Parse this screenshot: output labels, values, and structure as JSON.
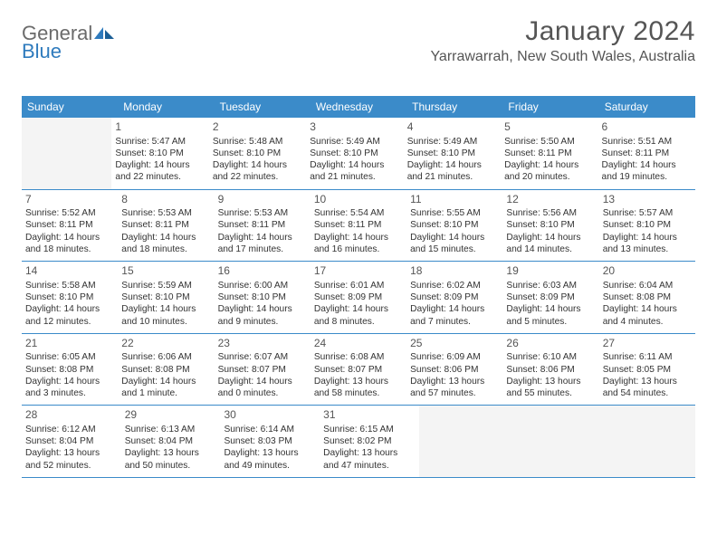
{
  "brand": {
    "part1": "General",
    "part2": "Blue"
  },
  "title": "January 2024",
  "location": "Yarrawarrah, New South Wales, Australia",
  "colors": {
    "header_bg": "#3b8bc9",
    "header_text": "#ffffff",
    "brand_gray": "#6b6b6b",
    "brand_blue": "#2f7bbd",
    "text": "#333333",
    "rule": "#3b8bc9",
    "empty_bg": "#f4f4f4",
    "page_bg": "#ffffff"
  },
  "weekdays": [
    "Sunday",
    "Monday",
    "Tuesday",
    "Wednesday",
    "Thursday",
    "Friday",
    "Saturday"
  ],
  "weeks": [
    [
      null,
      {
        "n": "1",
        "sr": "Sunrise: 5:47 AM",
        "ss": "Sunset: 8:10 PM",
        "dl": "Daylight: 14 hours and 22 minutes."
      },
      {
        "n": "2",
        "sr": "Sunrise: 5:48 AM",
        "ss": "Sunset: 8:10 PM",
        "dl": "Daylight: 14 hours and 22 minutes."
      },
      {
        "n": "3",
        "sr": "Sunrise: 5:49 AM",
        "ss": "Sunset: 8:10 PM",
        "dl": "Daylight: 14 hours and 21 minutes."
      },
      {
        "n": "4",
        "sr": "Sunrise: 5:49 AM",
        "ss": "Sunset: 8:10 PM",
        "dl": "Daylight: 14 hours and 21 minutes."
      },
      {
        "n": "5",
        "sr": "Sunrise: 5:50 AM",
        "ss": "Sunset: 8:11 PM",
        "dl": "Daylight: 14 hours and 20 minutes."
      },
      {
        "n": "6",
        "sr": "Sunrise: 5:51 AM",
        "ss": "Sunset: 8:11 PM",
        "dl": "Daylight: 14 hours and 19 minutes."
      }
    ],
    [
      {
        "n": "7",
        "sr": "Sunrise: 5:52 AM",
        "ss": "Sunset: 8:11 PM",
        "dl": "Daylight: 14 hours and 18 minutes."
      },
      {
        "n": "8",
        "sr": "Sunrise: 5:53 AM",
        "ss": "Sunset: 8:11 PM",
        "dl": "Daylight: 14 hours and 18 minutes."
      },
      {
        "n": "9",
        "sr": "Sunrise: 5:53 AM",
        "ss": "Sunset: 8:11 PM",
        "dl": "Daylight: 14 hours and 17 minutes."
      },
      {
        "n": "10",
        "sr": "Sunrise: 5:54 AM",
        "ss": "Sunset: 8:11 PM",
        "dl": "Daylight: 14 hours and 16 minutes."
      },
      {
        "n": "11",
        "sr": "Sunrise: 5:55 AM",
        "ss": "Sunset: 8:10 PM",
        "dl": "Daylight: 14 hours and 15 minutes."
      },
      {
        "n": "12",
        "sr": "Sunrise: 5:56 AM",
        "ss": "Sunset: 8:10 PM",
        "dl": "Daylight: 14 hours and 14 minutes."
      },
      {
        "n": "13",
        "sr": "Sunrise: 5:57 AM",
        "ss": "Sunset: 8:10 PM",
        "dl": "Daylight: 14 hours and 13 minutes."
      }
    ],
    [
      {
        "n": "14",
        "sr": "Sunrise: 5:58 AM",
        "ss": "Sunset: 8:10 PM",
        "dl": "Daylight: 14 hours and 12 minutes."
      },
      {
        "n": "15",
        "sr": "Sunrise: 5:59 AM",
        "ss": "Sunset: 8:10 PM",
        "dl": "Daylight: 14 hours and 10 minutes."
      },
      {
        "n": "16",
        "sr": "Sunrise: 6:00 AM",
        "ss": "Sunset: 8:10 PM",
        "dl": "Daylight: 14 hours and 9 minutes."
      },
      {
        "n": "17",
        "sr": "Sunrise: 6:01 AM",
        "ss": "Sunset: 8:09 PM",
        "dl": "Daylight: 14 hours and 8 minutes."
      },
      {
        "n": "18",
        "sr": "Sunrise: 6:02 AM",
        "ss": "Sunset: 8:09 PM",
        "dl": "Daylight: 14 hours and 7 minutes."
      },
      {
        "n": "19",
        "sr": "Sunrise: 6:03 AM",
        "ss": "Sunset: 8:09 PM",
        "dl": "Daylight: 14 hours and 5 minutes."
      },
      {
        "n": "20",
        "sr": "Sunrise: 6:04 AM",
        "ss": "Sunset: 8:08 PM",
        "dl": "Daylight: 14 hours and 4 minutes."
      }
    ],
    [
      {
        "n": "21",
        "sr": "Sunrise: 6:05 AM",
        "ss": "Sunset: 8:08 PM",
        "dl": "Daylight: 14 hours and 3 minutes."
      },
      {
        "n": "22",
        "sr": "Sunrise: 6:06 AM",
        "ss": "Sunset: 8:08 PM",
        "dl": "Daylight: 14 hours and 1 minute."
      },
      {
        "n": "23",
        "sr": "Sunrise: 6:07 AM",
        "ss": "Sunset: 8:07 PM",
        "dl": "Daylight: 14 hours and 0 minutes."
      },
      {
        "n": "24",
        "sr": "Sunrise: 6:08 AM",
        "ss": "Sunset: 8:07 PM",
        "dl": "Daylight: 13 hours and 58 minutes."
      },
      {
        "n": "25",
        "sr": "Sunrise: 6:09 AM",
        "ss": "Sunset: 8:06 PM",
        "dl": "Daylight: 13 hours and 57 minutes."
      },
      {
        "n": "26",
        "sr": "Sunrise: 6:10 AM",
        "ss": "Sunset: 8:06 PM",
        "dl": "Daylight: 13 hours and 55 minutes."
      },
      {
        "n": "27",
        "sr": "Sunrise: 6:11 AM",
        "ss": "Sunset: 8:05 PM",
        "dl": "Daylight: 13 hours and 54 minutes."
      }
    ],
    [
      {
        "n": "28",
        "sr": "Sunrise: 6:12 AM",
        "ss": "Sunset: 8:04 PM",
        "dl": "Daylight: 13 hours and 52 minutes."
      },
      {
        "n": "29",
        "sr": "Sunrise: 6:13 AM",
        "ss": "Sunset: 8:04 PM",
        "dl": "Daylight: 13 hours and 50 minutes."
      },
      {
        "n": "30",
        "sr": "Sunrise: 6:14 AM",
        "ss": "Sunset: 8:03 PM",
        "dl": "Daylight: 13 hours and 49 minutes."
      },
      {
        "n": "31",
        "sr": "Sunrise: 6:15 AM",
        "ss": "Sunset: 8:02 PM",
        "dl": "Daylight: 13 hours and 47 minutes."
      },
      null,
      null,
      null
    ]
  ]
}
